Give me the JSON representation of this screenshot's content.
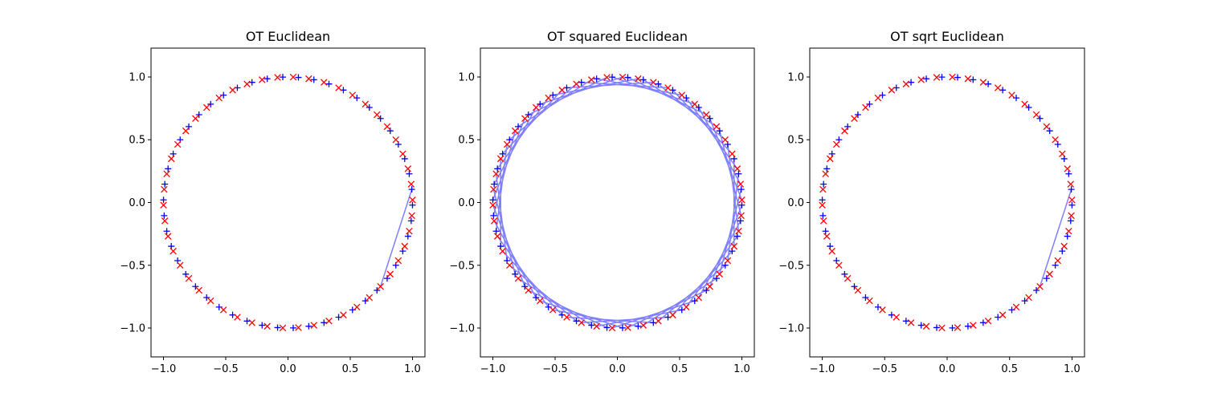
{
  "chart_data": [
    {
      "type": "scatter",
      "title": "OT Euclidean",
      "xlim": [
        -1.1,
        1.1
      ],
      "ylim": [
        -1.23,
        1.23
      ],
      "xticks": [
        {
          "value": -1.0,
          "label": "−1.0"
        },
        {
          "value": -0.5,
          "label": "−0.5"
        },
        {
          "value": 0.0,
          "label": "0.0"
        },
        {
          "value": 0.5,
          "label": "0.5"
        },
        {
          "value": 1.0,
          "label": "1.0"
        }
      ],
      "yticks": [
        {
          "value": -1.0,
          "label": "−1.0"
        },
        {
          "value": -0.5,
          "label": "−0.5"
        },
        {
          "value": 0.0,
          "label": "0.0"
        },
        {
          "value": 0.5,
          "label": "0.5"
        },
        {
          "value": 1.0,
          "label": "1.0"
        }
      ],
      "source_color": "#0000ff",
      "target_color": "#ff0000",
      "link_color": "#7f7fff",
      "source_count": 50,
      "source_angle_start_deg": 6,
      "target_angle_start_deg": -42,
      "angle_step_deg": 7.2,
      "links": "identity-except-last"
    },
    {
      "type": "scatter",
      "title": "OT squared Euclidean",
      "xlim": [
        -1.1,
        1.1
      ],
      "ylim": [
        -1.23,
        1.23
      ],
      "xticks": [
        {
          "value": -1.0,
          "label": "−1.0"
        },
        {
          "value": -0.5,
          "label": "−0.5"
        },
        {
          "value": 0.0,
          "label": "0.0"
        },
        {
          "value": 0.5,
          "label": "0.5"
        },
        {
          "value": 1.0,
          "label": "1.0"
        }
      ],
      "yticks": [
        {
          "value": -1.0,
          "label": "−1.0"
        },
        {
          "value": -0.5,
          "label": "−0.5"
        },
        {
          "value": 0.0,
          "label": "0.0"
        },
        {
          "value": 0.5,
          "label": "0.5"
        },
        {
          "value": 1.0,
          "label": "1.0"
        }
      ],
      "source_color": "#0000ff",
      "target_color": "#ff0000",
      "link_color": "#7f7fff",
      "source_count": 50,
      "source_angle_start_deg": 6,
      "target_angle_start_deg": -42,
      "angle_step_deg": 7.2,
      "links": "shift-one"
    },
    {
      "type": "scatter",
      "title": "OT sqrt Euclidean",
      "xlim": [
        -1.1,
        1.1
      ],
      "ylim": [
        -1.23,
        1.23
      ],
      "xticks": [
        {
          "value": -1.0,
          "label": "−1.0"
        },
        {
          "value": -0.5,
          "label": "−0.5"
        },
        {
          "value": 0.0,
          "label": "0.0"
        },
        {
          "value": 0.5,
          "label": "0.5"
        },
        {
          "value": 1.0,
          "label": "1.0"
        }
      ],
      "yticks": [
        {
          "value": -1.0,
          "label": "−1.0"
        },
        {
          "value": -0.5,
          "label": "−0.5"
        },
        {
          "value": 0.0,
          "label": "0.0"
        },
        {
          "value": 0.5,
          "label": "0.5"
        },
        {
          "value": 1.0,
          "label": "1.0"
        }
      ],
      "source_color": "#0000ff",
      "target_color": "#ff0000",
      "link_color": "#7f7fff",
      "source_count": 50,
      "source_angle_start_deg": 6,
      "target_angle_start_deg": -42,
      "angle_step_deg": 7.2,
      "links": "identity-except-last"
    }
  ]
}
